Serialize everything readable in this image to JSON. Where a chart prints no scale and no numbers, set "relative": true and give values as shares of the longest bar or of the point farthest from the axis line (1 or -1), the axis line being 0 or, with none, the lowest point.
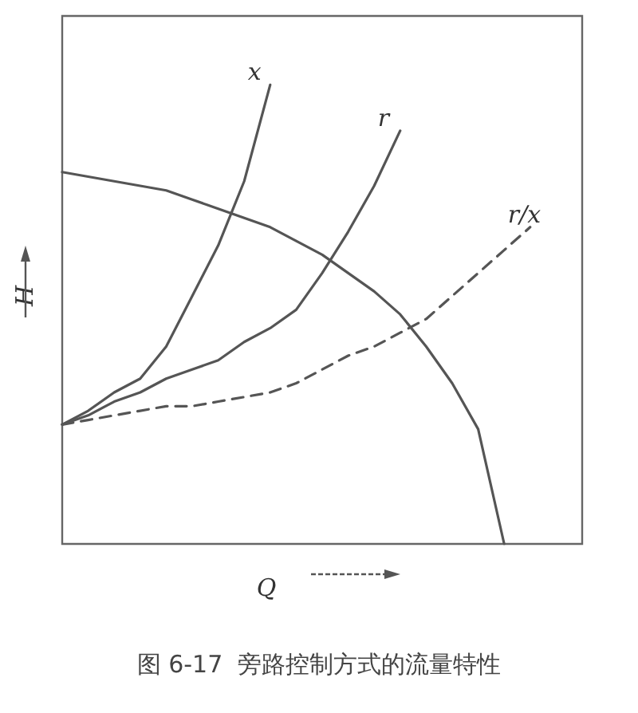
{
  "chart_data": {
    "type": "line",
    "title": "图 6-17  旁路控制方式的流量特性",
    "xlabel": "Q",
    "ylabel": "H",
    "relative": true,
    "marker": "none",
    "categories": [
      null,
      null,
      null,
      null,
      null,
      null,
      null,
      null,
      null,
      null,
      null,
      null,
      null,
      null,
      null,
      null,
      null,
      null,
      null,
      null,
      null
    ],
    "series": [
      {
        "color": "#555555",
        "values": [
          0.81,
          0.8,
          0.79,
          0.78,
          0.77,
          0.75,
          0.73,
          0.71,
          0.69,
          0.66,
          0.63,
          0.59,
          0.55,
          0.5,
          0.43,
          0.35,
          0.25,
          0,
          null,
          null,
          null
        ]
      },
      {
        "name": "x",
        "color": "#555555",
        "values": [
          0.26,
          0.29,
          0.33,
          0.36,
          0.43,
          0.54,
          0.65,
          0.79,
          1,
          null,
          null,
          null,
          null,
          null,
          null,
          null,
          null,
          null,
          null,
          null,
          null
        ]
      },
      {
        "name": "r",
        "color": "#555555",
        "values": [
          0.26,
          0.28,
          0.31,
          0.33,
          0.36,
          0.38,
          0.4,
          0.44,
          0.47,
          0.51,
          0.59,
          0.68,
          0.78,
          0.9,
          null,
          null,
          null,
          null,
          null,
          null,
          null
        ]
      },
      {
        "name": "r/x",
        "color": "#555555",
        "line_style": "dashed",
        "values": [
          0.26,
          0.27,
          0.28,
          0.29,
          0.3,
          0.3,
          0.31,
          0.32,
          0.33,
          0.35,
          0.38,
          0.41,
          0.43,
          0.46,
          0.49,
          0.54,
          0.59,
          0.64,
          0.69,
          null,
          null
        ]
      }
    ]
  }
}
